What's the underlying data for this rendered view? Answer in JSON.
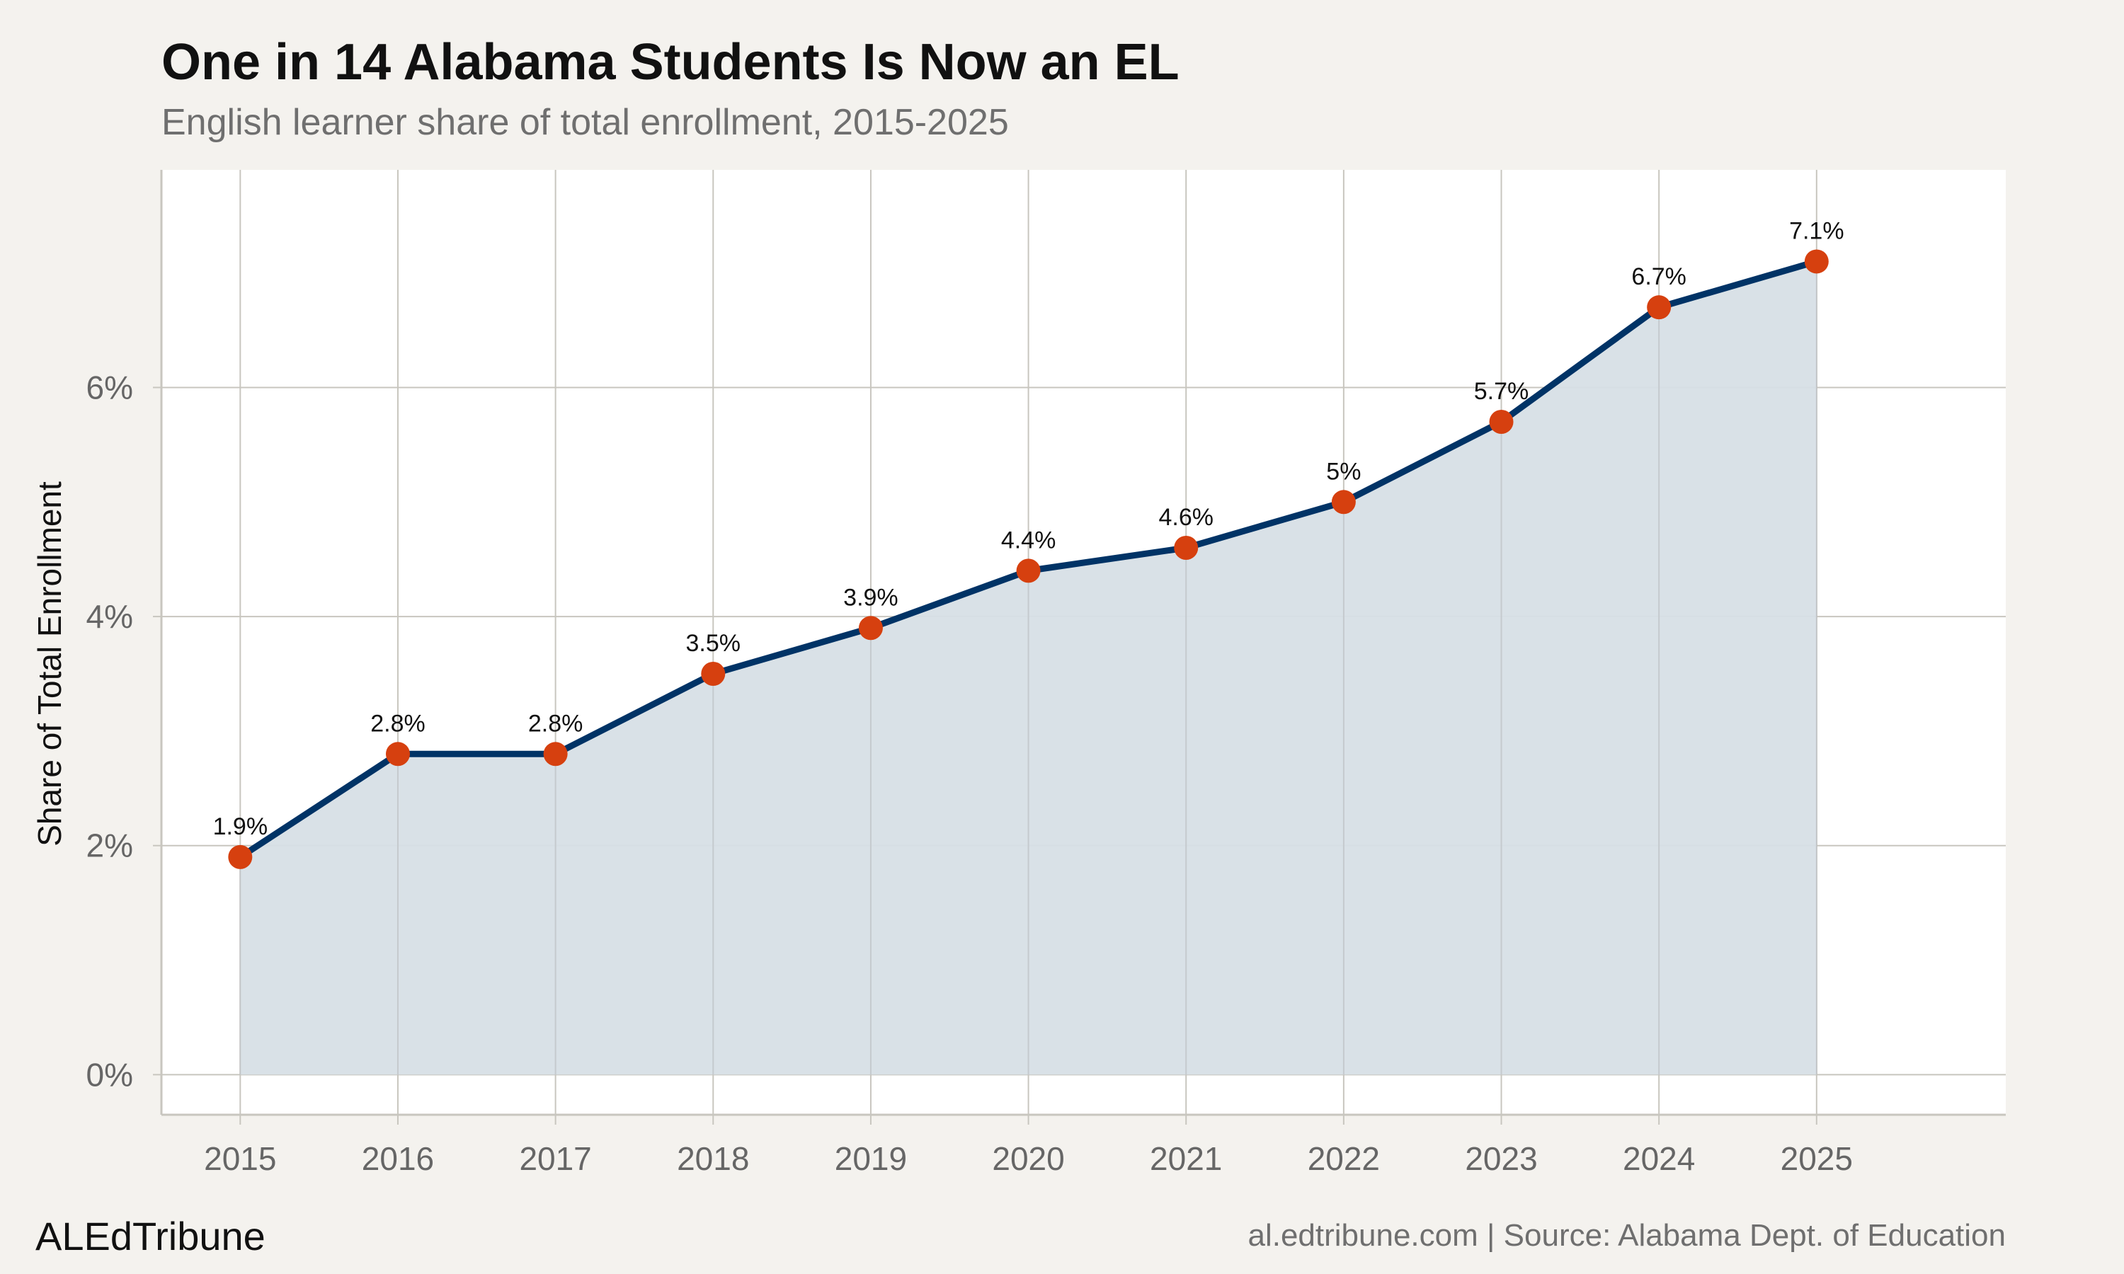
{
  "chart_data": {
    "type": "area",
    "title": "One in 14 Alabama Students Is Now an EL",
    "subtitle": "English learner share of total enrollment, 2015-2025",
    "xlabel": "",
    "ylabel": "Share of Total Enrollment",
    "categories": [
      "2015",
      "2016",
      "2017",
      "2018",
      "2019",
      "2020",
      "2021",
      "2022",
      "2023",
      "2024",
      "2025"
    ],
    "values": [
      1.9,
      2.8,
      2.8,
      3.5,
      3.9,
      4.4,
      4.6,
      5.0,
      5.7,
      6.7,
      7.1
    ],
    "data_labels": [
      "1.9%",
      "2.8%",
      "2.8%",
      "3.5%",
      "3.9%",
      "4.4%",
      "4.6%",
      "5%",
      "5.7%",
      "6.7%",
      "7.1%"
    ],
    "y_ticks": [
      0,
      2,
      4,
      6
    ],
    "y_tick_labels": [
      "0%",
      "2%",
      "4%",
      "6%"
    ],
    "ylim": [
      -0.35,
      7.9
    ],
    "x_range": [
      2014.5,
      2026.2
    ],
    "grid": true,
    "legend": "none",
    "colors": {
      "line": "#003366",
      "area": "#d7dfe6",
      "points": "#d6400f",
      "grid": "#c8c6bf",
      "background": "#f4f2ee",
      "panel": "#ffffff"
    }
  },
  "footer": {
    "brand": "ALEdTribune",
    "source": "al.edtribune.com | Source: Alabama Dept. of Education"
  }
}
